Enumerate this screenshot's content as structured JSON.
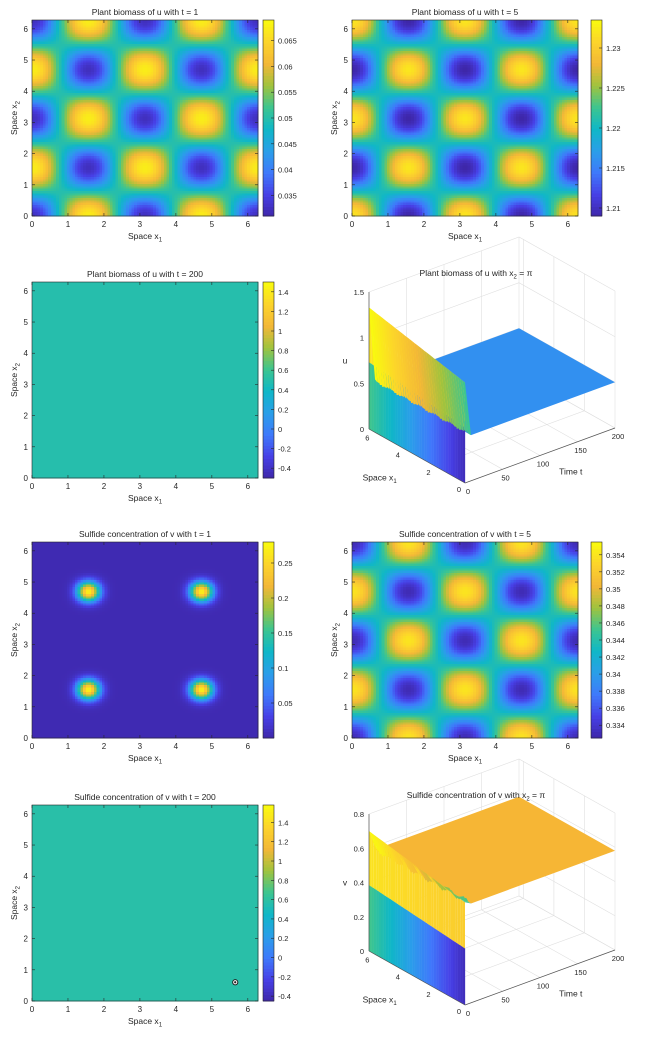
{
  "figure_title": "",
  "colormap": [
    "#3e26a8",
    "#4740e6",
    "#3f79fb",
    "#2a9ee9",
    "#0fb7c7",
    "#3dc590",
    "#a0c33e",
    "#f3b737",
    "#fcd42b",
    "#f9fb0e"
  ],
  "chart_data": [
    {
      "type": "heatmap",
      "id": "u_t1",
      "title": "Plant biomass of u with t = 1",
      "xlabel": "Space x",
      "xlabel_sub": "1",
      "ylabel": "Space x",
      "ylabel_sub": "2",
      "xlim": [
        0,
        6.2832
      ],
      "ylim": [
        0,
        6.2832
      ],
      "xticks": [
        "0",
        "1",
        "2",
        "3",
        "4",
        "5",
        "6"
      ],
      "yticks": [
        "0",
        "1",
        "2",
        "3",
        "4",
        "5",
        "6"
      ],
      "field": {
        "kind": "cos",
        "mean": 0.05,
        "a": -0.0175
      },
      "clim": [
        0.031,
        0.069
      ],
      "cticks": [
        {
          "v": 0.035,
          "l": "0.035"
        },
        {
          "v": 0.04,
          "l": "0.04"
        },
        {
          "v": 0.045,
          "l": "0.045"
        },
        {
          "v": 0.05,
          "l": "0.05"
        },
        {
          "v": 0.055,
          "l": "0.055"
        },
        {
          "v": 0.06,
          "l": "0.06"
        },
        {
          "v": 0.065,
          "l": "0.065"
        }
      ]
    },
    {
      "type": "heatmap",
      "id": "u_t5",
      "title": "Plant biomass of u with t = 5",
      "xlabel": "Space x",
      "xlabel_sub": "1",
      "ylabel": "Space x",
      "ylabel_sub": "2",
      "xlim": [
        0,
        6.2832
      ],
      "ylim": [
        0,
        6.2832
      ],
      "xticks": [
        "0",
        "1",
        "2",
        "3",
        "4",
        "5",
        "6"
      ],
      "yticks": [
        "0",
        "1",
        "2",
        "3",
        "4",
        "5",
        "6"
      ],
      "field": {
        "kind": "cos",
        "mean": 1.2205,
        "a": 0.0115
      },
      "clim": [
        1.209,
        1.2335
      ],
      "cticks": [
        {
          "v": 1.21,
          "l": "1.21"
        },
        {
          "v": 1.215,
          "l": "1.215"
        },
        {
          "v": 1.22,
          "l": "1.22"
        },
        {
          "v": 1.225,
          "l": "1.225"
        },
        {
          "v": 1.23,
          "l": "1.23"
        }
      ]
    },
    {
      "type": "heatmap",
      "id": "u_t200",
      "title": "Plant biomass of u with t = 200",
      "xlabel": "Space x",
      "xlabel_sub": "1",
      "ylabel": "Space x",
      "ylabel_sub": "2",
      "xlim": [
        0,
        6.2832
      ],
      "ylim": [
        0,
        6.2832
      ],
      "xticks": [
        "0",
        "1",
        "2",
        "3",
        "4",
        "5",
        "6"
      ],
      "yticks": [
        "0",
        "1",
        "2",
        "3",
        "4",
        "5",
        "6"
      ],
      "field": {
        "kind": "const",
        "value": 0.5
      },
      "clim": [
        -0.5,
        1.5
      ],
      "cticks": [
        {
          "v": -0.4,
          "l": "-0.4"
        },
        {
          "v": -0.2,
          "l": "-0.2"
        },
        {
          "v": 0,
          "l": "0"
        },
        {
          "v": 0.2,
          "l": "0.2"
        },
        {
          "v": 0.4,
          "l": "0.4"
        },
        {
          "v": 0.6,
          "l": "0.6"
        },
        {
          "v": 0.8,
          "l": "0.8"
        },
        {
          "v": 1,
          "l": "1"
        },
        {
          "v": 1.2,
          "l": "1.2"
        },
        {
          "v": 1.4,
          "l": "1.4"
        }
      ]
    },
    {
      "type": "surface3d",
      "id": "u_surf",
      "title": "Plant biomass of u with x",
      "title_sub": "2",
      "title_tail": " = π",
      "xlabel": "Time t",
      "ylabel": "Space x",
      "ylabel_sub": "1",
      "zlabel": "u",
      "xticks": [
        "0",
        "50",
        "100",
        "150",
        "200"
      ],
      "yticks": [
        "0",
        "2",
        "4",
        "6"
      ],
      "zticks": [
        "0",
        "0.5",
        "1",
        "1.5"
      ],
      "zlim": [
        0,
        1.5
      ],
      "peak_start": 1.33,
      "peak_end": 1.1,
      "steady": 0.5,
      "steady_color": "#3290f0"
    },
    {
      "type": "heatmap",
      "id": "v_t1",
      "title": "Sulfide concentration of v with t = 1",
      "xlabel": "Space x",
      "xlabel_sub": "1",
      "ylabel": "Space x",
      "ylabel_sub": "2",
      "xlim": [
        0,
        6.2832
      ],
      "ylim": [
        0,
        6.2832
      ],
      "xticks": [
        "0",
        "1",
        "2",
        "3",
        "4",
        "5",
        "6"
      ],
      "yticks": [
        "0",
        "1",
        "2",
        "3",
        "4",
        "5",
        "6"
      ],
      "field": {
        "kind": "blob",
        "base": 0.005,
        "peak": 0.275,
        "k": 10
      },
      "clim": [
        0,
        0.28
      ],
      "cticks": [
        {
          "v": 0.05,
          "l": "0.05"
        },
        {
          "v": 0.1,
          "l": "0.1"
        },
        {
          "v": 0.15,
          "l": "0.15"
        },
        {
          "v": 0.2,
          "l": "0.2"
        },
        {
          "v": 0.25,
          "l": "0.25"
        }
      ]
    },
    {
      "type": "heatmap",
      "id": "v_t5",
      "title": "Sulfide concentration of v with t = 5",
      "xlabel": "Space x",
      "xlabel_sub": "1",
      "ylabel": "Space x",
      "ylabel_sub": "2",
      "xlim": [
        0,
        6.2832
      ],
      "ylim": [
        0,
        6.2832
      ],
      "xticks": [
        "0",
        "1",
        "2",
        "3",
        "4",
        "5",
        "6"
      ],
      "yticks": [
        "0",
        "1",
        "2",
        "3",
        "4",
        "5",
        "6"
      ],
      "field": {
        "kind": "cos",
        "mean": 0.3435,
        "a": -0.0105
      },
      "clim": [
        0.3325,
        0.3555
      ],
      "cticks": [
        {
          "v": 0.334,
          "l": "0.334"
        },
        {
          "v": 0.336,
          "l": "0.336"
        },
        {
          "v": 0.338,
          "l": "0.338"
        },
        {
          "v": 0.34,
          "l": "0.34"
        },
        {
          "v": 0.342,
          "l": "0.342"
        },
        {
          "v": 0.344,
          "l": "0.344"
        },
        {
          "v": 0.346,
          "l": "0.346"
        },
        {
          "v": 0.348,
          "l": "0.348"
        },
        {
          "v": 0.35,
          "l": "0.35"
        },
        {
          "v": 0.352,
          "l": "0.352"
        },
        {
          "v": 0.354,
          "l": "0.354"
        }
      ]
    },
    {
      "type": "heatmap",
      "id": "v_t200",
      "title": "Sulfide concentration of v with t = 200",
      "xlabel": "Space x",
      "xlabel_sub": "1",
      "ylabel": "Space x",
      "ylabel_sub": "2",
      "xlim": [
        0,
        6.2832
      ],
      "ylim": [
        0,
        6.2832
      ],
      "xticks": [
        "0",
        "1",
        "2",
        "3",
        "4",
        "5",
        "6"
      ],
      "yticks": [
        "0",
        "1",
        "2",
        "3",
        "4",
        "5",
        "6"
      ],
      "field": {
        "kind": "const",
        "value": 0.58
      },
      "marker": {
        "x": 5.65,
        "y": 0.6
      },
      "clim": [
        -0.45,
        1.58
      ],
      "cticks": [
        {
          "v": -0.4,
          "l": "-0.4"
        },
        {
          "v": -0.2,
          "l": "-0.2"
        },
        {
          "v": 0,
          "l": "0"
        },
        {
          "v": 0.2,
          "l": "0.2"
        },
        {
          "v": 0.4,
          "l": "0.4"
        },
        {
          "v": 0.6,
          "l": "0.6"
        },
        {
          "v": 0.8,
          "l": "0.8"
        },
        {
          "v": 1,
          "l": "1"
        },
        {
          "v": 1.2,
          "l": "1.2"
        },
        {
          "v": 1.4,
          "l": "1.4"
        }
      ]
    },
    {
      "type": "surface3d",
      "id": "v_surf",
      "title": "Sulfide concentration of v with x",
      "title_sub": "2",
      "title_tail": " = π",
      "xlabel": "Time t",
      "ylabel": "Space x",
      "ylabel_sub": "1",
      "zlabel": "v",
      "xticks": [
        "0",
        "50",
        "100",
        "150",
        "200"
      ],
      "yticks": [
        "0",
        "2",
        "4",
        "6"
      ],
      "zticks": [
        "0",
        "0.2",
        "0.4",
        "0.6",
        "0.8"
      ],
      "zlim": [
        0,
        0.8
      ],
      "peak_start": 0.7,
      "peak_end": 0.6,
      "steady": 0.58,
      "steady_color": "#f6b635"
    }
  ]
}
